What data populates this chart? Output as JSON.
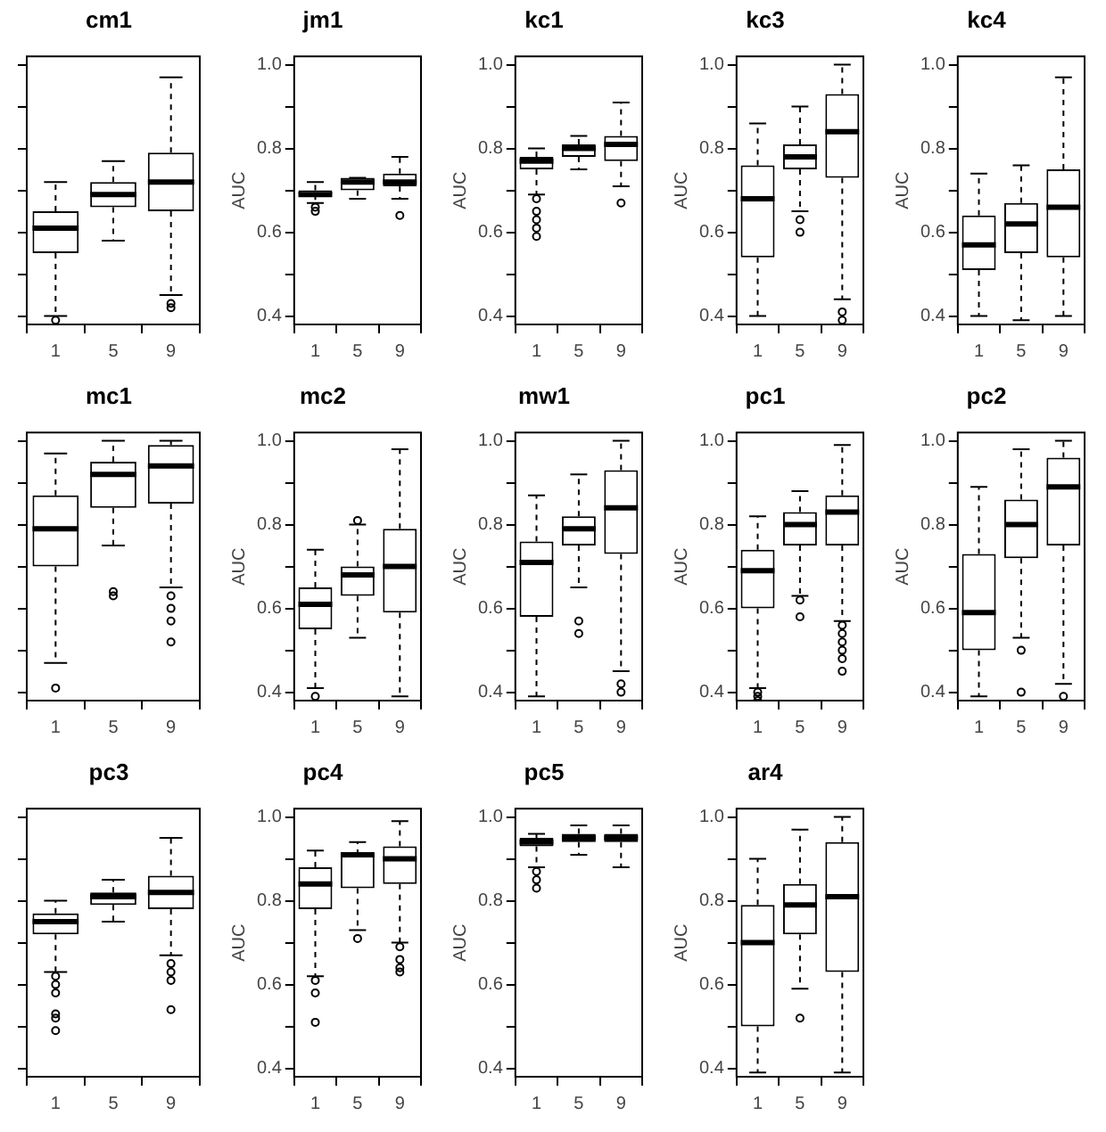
{
  "chart_data": [
    {
      "type": "box",
      "title": "cm1",
      "categories": [
        "1",
        "5",
        "9"
      ],
      "ylim": [
        0.38,
        1.02
      ],
      "yticks": [
        {
          "value": 0.4,
          "label": null
        },
        {
          "value": 0.5,
          "label": null
        },
        {
          "value": 0.6,
          "label": null
        },
        {
          "value": 0.7,
          "label": null
        },
        {
          "value": 0.8,
          "label": null
        },
        {
          "value": 0.9,
          "label": null
        },
        {
          "value": 1,
          "label": null
        }
      ],
      "tick_labels": "x",
      "boxes": [
        {
          "low": 0.4,
          "q1": 0.55,
          "median": 0.61,
          "q3": 0.65,
          "high": 0.72,
          "outliers": [
            0.39
          ]
        },
        {
          "low": 0.58,
          "q1": 0.66,
          "median": 0.69,
          "q3": 0.72,
          "high": 0.77
        },
        {
          "low": 0.45,
          "q1": 0.65,
          "median": 0.72,
          "q3": 0.79,
          "high": 0.97,
          "outliers": [
            0.43,
            0.42
          ]
        }
      ]
    },
    {
      "type": "box",
      "title": "jm1",
      "ylabel": "AUC",
      "categories": [
        "1",
        "5",
        "9"
      ],
      "ylim": [
        0.38,
        1.02
      ],
      "yticks": [
        0.4,
        {
          "value": 0.5,
          "label": null
        },
        0.6,
        {
          "value": 0.7,
          "label": null
        },
        0.8,
        {
          "value": 0.9,
          "label": null
        },
        {
          "value": 1,
          "label": "1.0"
        }
      ],
      "boxes": [
        {
          "low": 0.67,
          "q1": 0.69,
          "median": 0.69,
          "q3": 0.7,
          "high": 0.72,
          "outliers": [
            0.66,
            0.65
          ]
        },
        {
          "low": 0.68,
          "q1": 0.7,
          "median": 0.72,
          "q3": 0.73,
          "high": 0.73
        },
        {
          "low": 0.68,
          "q1": 0.71,
          "median": 0.72,
          "q3": 0.74,
          "high": 0.78,
          "outliers": [
            0.64
          ]
        }
      ]
    },
    {
      "type": "box",
      "title": "kc1",
      "ylabel": "AUC",
      "categories": [
        "1",
        "5",
        "9"
      ],
      "ylim": [
        0.38,
        1.02
      ],
      "yticks": [
        0.4,
        {
          "value": 0.5,
          "label": null
        },
        0.6,
        {
          "value": 0.7,
          "label": null
        },
        0.8,
        {
          "value": 0.9,
          "label": null
        },
        {
          "value": 1,
          "label": "1.0"
        }
      ],
      "boxes": [
        {
          "low": 0.69,
          "q1": 0.75,
          "median": 0.77,
          "q3": 0.78,
          "high": 0.8,
          "outliers": [
            0.68,
            0.65,
            0.63,
            0.61,
            0.59
          ]
        },
        {
          "low": 0.75,
          "q1": 0.78,
          "median": 0.8,
          "q3": 0.81,
          "high": 0.83
        },
        {
          "low": 0.71,
          "q1": 0.77,
          "median": 0.81,
          "q3": 0.83,
          "high": 0.91,
          "outliers": [
            0.67
          ]
        }
      ]
    },
    {
      "type": "box",
      "title": "kc3",
      "ylabel": "AUC",
      "categories": [
        "1",
        "5",
        "9"
      ],
      "ylim": [
        0.38,
        1.02
      ],
      "yticks": [
        0.4,
        {
          "value": 0.5,
          "label": null
        },
        0.6,
        {
          "value": 0.7,
          "label": null
        },
        0.8,
        {
          "value": 0.9,
          "label": null
        },
        {
          "value": 1,
          "label": "1.0"
        }
      ],
      "boxes": [
        {
          "low": 0.4,
          "q1": 0.54,
          "median": 0.68,
          "q3": 0.76,
          "high": 0.86
        },
        {
          "low": 0.65,
          "q1": 0.75,
          "median": 0.78,
          "q3": 0.81,
          "high": 0.9,
          "outliers": [
            0.63,
            0.6
          ]
        },
        {
          "low": 0.44,
          "q1": 0.73,
          "median": 0.84,
          "q3": 0.93,
          "high": 1.0,
          "outliers": [
            0.41,
            0.39
          ]
        }
      ]
    },
    {
      "type": "box",
      "title": "kc4",
      "ylabel": "AUC",
      "categories": [
        "1",
        "5",
        "9"
      ],
      "ylim": [
        0.38,
        1.02
      ],
      "yticks": [
        0.4,
        {
          "value": 0.5,
          "label": null
        },
        0.6,
        {
          "value": 0.7,
          "label": null
        },
        0.8,
        {
          "value": 0.9,
          "label": null
        },
        {
          "value": 1,
          "label": "1.0"
        }
      ],
      "boxes": [
        {
          "low": 0.4,
          "q1": 0.51,
          "median": 0.57,
          "q3": 0.64,
          "high": 0.74
        },
        {
          "low": 0.39,
          "q1": 0.55,
          "median": 0.62,
          "q3": 0.67,
          "high": 0.76
        },
        {
          "low": 0.4,
          "q1": 0.54,
          "median": 0.66,
          "q3": 0.75,
          "high": 0.97
        }
      ]
    },
    {
      "type": "box",
      "title": "mc1",
      "categories": [
        "1",
        "5",
        "9"
      ],
      "ylim": [
        0.38,
        1.02
      ],
      "yticks": [
        {
          "value": 0.4,
          "label": null
        },
        {
          "value": 0.5,
          "label": null
        },
        {
          "value": 0.6,
          "label": null
        },
        {
          "value": 0.7,
          "label": null
        },
        {
          "value": 0.8,
          "label": null
        },
        {
          "value": 0.9,
          "label": null
        },
        {
          "value": 1,
          "label": null
        }
      ],
      "tick_labels": "x",
      "boxes": [
        {
          "low": 0.47,
          "q1": 0.7,
          "median": 0.79,
          "q3": 0.87,
          "high": 0.97,
          "outliers": [
            0.41
          ]
        },
        {
          "low": 0.75,
          "q1": 0.84,
          "median": 0.92,
          "q3": 0.95,
          "high": 1.0,
          "outliers": [
            0.64,
            0.63
          ]
        },
        {
          "low": 0.65,
          "q1": 0.85,
          "median": 0.94,
          "q3": 0.99,
          "high": 1.0,
          "outliers": [
            0.63,
            0.6,
            0.57,
            0.52
          ]
        }
      ]
    },
    {
      "type": "box",
      "title": "mc2",
      "ylabel": "AUC",
      "categories": [
        "1",
        "5",
        "9"
      ],
      "ylim": [
        0.38,
        1.02
      ],
      "yticks": [
        0.4,
        {
          "value": 0.5,
          "label": null
        },
        0.6,
        {
          "value": 0.7,
          "label": null
        },
        0.8,
        {
          "value": 0.9,
          "label": null
        },
        {
          "value": 1,
          "label": "1.0"
        }
      ],
      "boxes": [
        {
          "low": 0.41,
          "q1": 0.55,
          "median": 0.61,
          "q3": 0.65,
          "high": 0.74,
          "outliers": [
            0.39
          ]
        },
        {
          "low": 0.53,
          "q1": 0.63,
          "median": 0.68,
          "q3": 0.7,
          "high": 0.8,
          "outliers": [
            0.81
          ]
        },
        {
          "low": 0.39,
          "q1": 0.59,
          "median": 0.7,
          "q3": 0.79,
          "high": 0.98
        }
      ]
    },
    {
      "type": "box",
      "title": "mw1",
      "ylabel": "AUC",
      "categories": [
        "1",
        "5",
        "9"
      ],
      "ylim": [
        0.38,
        1.02
      ],
      "yticks": [
        0.4,
        {
          "value": 0.5,
          "label": null
        },
        0.6,
        {
          "value": 0.7,
          "label": null
        },
        0.8,
        {
          "value": 0.9,
          "label": null
        },
        {
          "value": 1,
          "label": "1.0"
        }
      ],
      "boxes": [
        {
          "low": 0.39,
          "q1": 0.58,
          "median": 0.71,
          "q3": 0.76,
          "high": 0.87
        },
        {
          "low": 0.65,
          "q1": 0.75,
          "median": 0.79,
          "q3": 0.82,
          "high": 0.92,
          "outliers": [
            0.57,
            0.54
          ]
        },
        {
          "low": 0.45,
          "q1": 0.73,
          "median": 0.84,
          "q3": 0.93,
          "high": 1.0,
          "outliers": [
            0.42,
            0.4
          ]
        }
      ]
    },
    {
      "type": "box",
      "title": "pc1",
      "ylabel": "AUC",
      "categories": [
        "1",
        "5",
        "9"
      ],
      "ylim": [
        0.38,
        1.02
      ],
      "yticks": [
        0.4,
        {
          "value": 0.5,
          "label": null
        },
        0.6,
        {
          "value": 0.7,
          "label": null
        },
        0.8,
        {
          "value": 0.9,
          "label": null
        },
        {
          "value": 1,
          "label": "1.0"
        }
      ],
      "boxes": [
        {
          "low": 0.41,
          "q1": 0.6,
          "median": 0.69,
          "q3": 0.74,
          "high": 0.82,
          "outliers": [
            0.4,
            0.39,
            0.38
          ]
        },
        {
          "low": 0.63,
          "q1": 0.75,
          "median": 0.8,
          "q3": 0.83,
          "high": 0.88,
          "outliers": [
            0.62,
            0.58
          ]
        },
        {
          "low": 0.57,
          "q1": 0.75,
          "median": 0.83,
          "q3": 0.87,
          "high": 0.99,
          "outliers": [
            0.56,
            0.54,
            0.52,
            0.5,
            0.48,
            0.45
          ]
        }
      ]
    },
    {
      "type": "box",
      "title": "pc2",
      "ylabel": "AUC",
      "categories": [
        "1",
        "5",
        "9"
      ],
      "ylim": [
        0.38,
        1.02
      ],
      "yticks": [
        0.4,
        {
          "value": 0.5,
          "label": null
        },
        0.6,
        {
          "value": 0.7,
          "label": null
        },
        0.8,
        {
          "value": 0.9,
          "label": null
        },
        {
          "value": 1,
          "label": "1.0"
        }
      ],
      "boxes": [
        {
          "low": 0.39,
          "q1": 0.5,
          "median": 0.59,
          "q3": 0.73,
          "high": 0.89
        },
        {
          "low": 0.53,
          "q1": 0.72,
          "median": 0.8,
          "q3": 0.86,
          "high": 0.98,
          "outliers": [
            0.5,
            0.4
          ]
        },
        {
          "low": 0.42,
          "q1": 0.75,
          "median": 0.89,
          "q3": 0.96,
          "high": 1.0,
          "outliers": [
            0.39
          ]
        }
      ]
    },
    {
      "type": "box",
      "title": "pc3",
      "categories": [
        "1",
        "5",
        "9"
      ],
      "ylim": [
        0.38,
        1.02
      ],
      "yticks": [
        {
          "value": 0.4,
          "label": null
        },
        {
          "value": 0.5,
          "label": null
        },
        {
          "value": 0.6,
          "label": null
        },
        {
          "value": 0.7,
          "label": null
        },
        {
          "value": 0.8,
          "label": null
        },
        {
          "value": 0.9,
          "label": null
        },
        {
          "value": 1,
          "label": null
        }
      ],
      "tick_labels": "x",
      "boxes": [
        {
          "low": 0.63,
          "q1": 0.72,
          "median": 0.75,
          "q3": 0.77,
          "high": 0.8,
          "outliers": [
            0.62,
            0.6,
            0.58,
            0.53,
            0.52,
            0.49
          ]
        },
        {
          "low": 0.75,
          "q1": 0.79,
          "median": 0.81,
          "q3": 0.82,
          "high": 0.85
        },
        {
          "low": 0.67,
          "q1": 0.78,
          "median": 0.82,
          "q3": 0.86,
          "high": 0.95,
          "outliers": [
            0.65,
            0.63,
            0.61,
            0.54
          ]
        }
      ]
    },
    {
      "type": "box",
      "title": "pc4",
      "ylabel": "AUC",
      "categories": [
        "1",
        "5",
        "9"
      ],
      "ylim": [
        0.38,
        1.02
      ],
      "yticks": [
        0.4,
        {
          "value": 0.5,
          "label": null
        },
        0.6,
        {
          "value": 0.7,
          "label": null
        },
        0.8,
        {
          "value": 0.9,
          "label": null
        },
        {
          "value": 1,
          "label": "1.0"
        }
      ],
      "boxes": [
        {
          "low": 0.62,
          "q1": 0.78,
          "median": 0.84,
          "q3": 0.88,
          "high": 0.92,
          "outliers": [
            0.61,
            0.58,
            0.51
          ]
        },
        {
          "low": 0.73,
          "q1": 0.83,
          "median": 0.91,
          "q3": 0.91,
          "high": 0.94,
          "outliers": [
            0.71
          ]
        },
        {
          "low": 0.7,
          "q1": 0.84,
          "median": 0.9,
          "q3": 0.93,
          "high": 0.99,
          "outliers": [
            0.69,
            0.66,
            0.64,
            0.63
          ]
        }
      ]
    },
    {
      "type": "box",
      "title": "pc5",
      "ylabel": "AUC",
      "categories": [
        "1",
        "5",
        "9"
      ],
      "ylim": [
        0.38,
        1.02
      ],
      "yticks": [
        0.4,
        {
          "value": 0.5,
          "label": null
        },
        0.6,
        {
          "value": 0.7,
          "label": null
        },
        0.8,
        {
          "value": 0.9,
          "label": null
        },
        {
          "value": 1,
          "label": "1.0"
        }
      ],
      "boxes": [
        {
          "low": 0.88,
          "q1": 0.93,
          "median": 0.94,
          "q3": 0.95,
          "high": 0.96,
          "outliers": [
            0.87,
            0.85,
            0.83
          ]
        },
        {
          "low": 0.91,
          "q1": 0.94,
          "median": 0.95,
          "q3": 0.96,
          "high": 0.98
        },
        {
          "low": 0.88,
          "q1": 0.94,
          "median": 0.95,
          "q3": 0.96,
          "high": 0.98
        }
      ]
    },
    {
      "type": "box",
      "title": "ar4",
      "ylabel": "AUC",
      "categories": [
        "1",
        "5",
        "9"
      ],
      "ylim": [
        0.38,
        1.02
      ],
      "yticks": [
        0.4,
        {
          "value": 0.5,
          "label": null
        },
        0.6,
        {
          "value": 0.7,
          "label": null
        },
        0.8,
        {
          "value": 0.9,
          "label": null
        },
        {
          "value": 1,
          "label": "1.0"
        }
      ],
      "boxes": [
        {
          "low": 0.39,
          "q1": 0.5,
          "median": 0.7,
          "q3": 0.79,
          "high": 0.9
        },
        {
          "low": 0.59,
          "q1": 0.72,
          "median": 0.79,
          "q3": 0.84,
          "high": 0.97,
          "outliers": [
            0.52
          ]
        },
        {
          "low": 0.39,
          "q1": 0.63,
          "median": 0.81,
          "q3": 0.94,
          "high": 1.0
        }
      ]
    }
  ]
}
